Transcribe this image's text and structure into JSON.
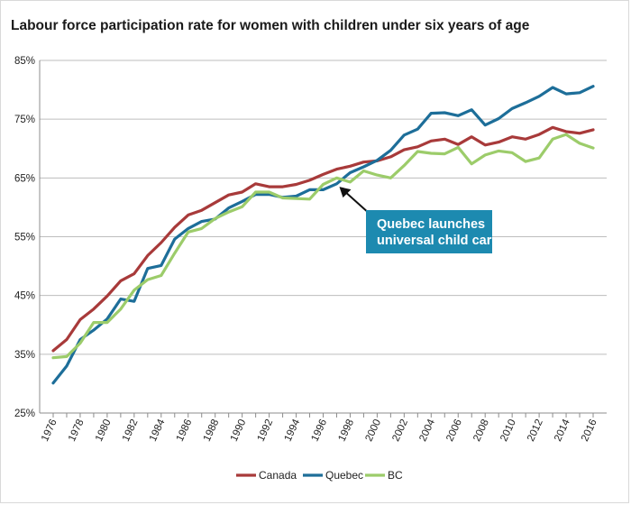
{
  "chart_data": {
    "type": "line",
    "title": "Labour force participation rate for women with children under six years of age",
    "xlabel": "",
    "ylabel": "",
    "ylim": [
      25,
      85
    ],
    "yticks": [
      "25%",
      "35%",
      "45%",
      "55%",
      "65%",
      "75%",
      "85%"
    ],
    "xlim": [
      1976,
      2016
    ],
    "xticks": [
      "1976",
      "1978",
      "1980",
      "1982",
      "1984",
      "1986",
      "1988",
      "1990",
      "1992",
      "1994",
      "1996",
      "1998",
      "2000",
      "2002",
      "2004",
      "2006",
      "2008",
      "2010",
      "2012",
      "2014",
      "2016"
    ],
    "grid": "horizontal",
    "legend_position": "bottom",
    "x": [
      1976,
      1977,
      1978,
      1979,
      1980,
      1981,
      1982,
      1983,
      1984,
      1985,
      1986,
      1987,
      1988,
      1989,
      1990,
      1991,
      1992,
      1993,
      1994,
      1995,
      1996,
      1997,
      1998,
      1999,
      2000,
      2001,
      2002,
      2003,
      2004,
      2005,
      2006,
      2007,
      2008,
      2009,
      2010,
      2011,
      2012,
      2013,
      2014,
      2015,
      2016
    ],
    "series": [
      {
        "name": "Canada",
        "color": "#a83a3a",
        "values": [
          35.6,
          37.5,
          40.9,
          42.7,
          44.9,
          47.5,
          48.7,
          51.8,
          54.0,
          56.6,
          58.7,
          59.5,
          60.8,
          62.1,
          62.6,
          64.0,
          63.5,
          63.5,
          63.9,
          64.6,
          65.6,
          66.5,
          67.0,
          67.7,
          67.9,
          68.6,
          69.8,
          70.3,
          71.3,
          71.6,
          70.7,
          72.0,
          70.6,
          71.1,
          72.0,
          71.6,
          72.4,
          73.6,
          72.9,
          72.6,
          73.2
        ]
      },
      {
        "name": "Quebec",
        "color": "#1d6e99",
        "values": [
          30.1,
          33.0,
          37.5,
          39.1,
          41.0,
          44.4,
          44.0,
          49.6,
          50.1,
          54.6,
          56.4,
          57.6,
          58.0,
          59.9,
          61.0,
          62.2,
          62.2,
          61.7,
          61.9,
          63.0,
          63.0,
          64.0,
          65.9,
          66.9,
          68.0,
          69.7,
          72.3,
          73.3,
          76.0,
          76.1,
          75.6,
          76.6,
          74.0,
          75.1,
          76.8,
          77.8,
          78.9,
          80.4,
          79.3,
          79.5,
          80.6
        ]
      },
      {
        "name": "BC",
        "color": "#9ccc6a",
        "values": [
          34.4,
          34.6,
          36.9,
          40.4,
          40.4,
          42.7,
          45.9,
          47.7,
          48.4,
          52.2,
          55.8,
          56.4,
          58.1,
          59.2,
          60.1,
          62.6,
          62.6,
          61.6,
          61.5,
          61.4,
          63.9,
          65.0,
          64.3,
          66.2,
          65.5,
          65.0,
          67.1,
          69.5,
          69.2,
          69.1,
          70.2,
          67.4,
          68.9,
          69.6,
          69.3,
          67.8,
          68.4,
          71.6,
          72.4,
          70.9,
          70.1
        ]
      }
    ],
    "annotation": {
      "line1": "Quebec launches",
      "line2": "universal child care",
      "x": 1997,
      "y": 63.8
    }
  }
}
